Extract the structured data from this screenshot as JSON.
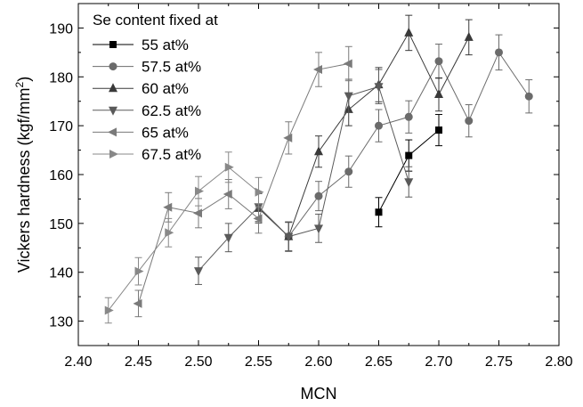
{
  "chart_data": {
    "type": "line",
    "xlabel": "MCN",
    "ylabel": "Vickers hardness (kgf/mm",
    "ylabel_sup": "2",
    "ylabel_tail": ")",
    "xlim": [
      2.4,
      2.8
    ],
    "ylim": [
      125,
      195
    ],
    "xticks": [
      "2.40",
      "2.45",
      "2.50",
      "2.55",
      "2.60",
      "2.65",
      "2.70",
      "2.75",
      "2.80"
    ],
    "yticks": [
      "130",
      "140",
      "150",
      "160",
      "170",
      "180",
      "190"
    ],
    "legend_title": "Se content fixed at",
    "legend_position": "top-left",
    "grid": false,
    "series": [
      {
        "name": "55 at%",
        "marker": "square",
        "color": "#000000",
        "points": [
          {
            "x": 2.65,
            "y": 152.3,
            "err": 3.0
          },
          {
            "x": 2.675,
            "y": 163.9,
            "err": 3.2
          },
          {
            "x": 2.7,
            "y": 169.1,
            "err": 3.2
          }
        ]
      },
      {
        "name": "57.5 at%",
        "marker": "circle",
        "color": "#6b6b6b",
        "points": [
          {
            "x": 2.575,
            "y": 147.3,
            "err": 3.0
          },
          {
            "x": 2.6,
            "y": 155.6,
            "err": 3.0
          },
          {
            "x": 2.625,
            "y": 160.6,
            "err": 3.2
          },
          {
            "x": 2.65,
            "y": 170.0,
            "err": 3.3
          },
          {
            "x": 2.675,
            "y": 171.8,
            "err": 3.3
          },
          {
            "x": 2.7,
            "y": 183.2,
            "err": 3.5
          },
          {
            "x": 2.725,
            "y": 171.0,
            "err": 3.3
          },
          {
            "x": 2.75,
            "y": 185.0,
            "err": 3.6
          },
          {
            "x": 2.775,
            "y": 176.0,
            "err": 3.4
          }
        ]
      },
      {
        "name": "60 at%",
        "marker": "triangle-up",
        "color": "#3a3a3a",
        "points": [
          {
            "x": 2.55,
            "y": 153.1,
            "err": 3.0
          },
          {
            "x": 2.575,
            "y": 147.3,
            "err": 3.0
          },
          {
            "x": 2.6,
            "y": 164.7,
            "err": 3.2
          },
          {
            "x": 2.625,
            "y": 173.3,
            "err": 3.3
          },
          {
            "x": 2.65,
            "y": 178.4,
            "err": 3.5
          },
          {
            "x": 2.675,
            "y": 189.0,
            "err": 3.6
          },
          {
            "x": 2.7,
            "y": 176.4,
            "err": 3.4
          },
          {
            "x": 2.725,
            "y": 188.1,
            "err": 3.6
          }
        ]
      },
      {
        "name": "62.5 at%",
        "marker": "triangle-down",
        "color": "#5a5a5a",
        "points": [
          {
            "x": 2.5,
            "y": 140.3,
            "err": 2.8
          },
          {
            "x": 2.525,
            "y": 147.1,
            "err": 2.9
          },
          {
            "x": 2.55,
            "y": 153.4,
            "err": 3.0
          },
          {
            "x": 2.575,
            "y": 147.3,
            "err": 2.9
          },
          {
            "x": 2.6,
            "y": 149.0,
            "err": 2.9
          },
          {
            "x": 2.625,
            "y": 176.1,
            "err": 3.4
          },
          {
            "x": 2.65,
            "y": 178.0,
            "err": 3.5
          },
          {
            "x": 2.675,
            "y": 158.5,
            "err": 3.1
          }
        ]
      },
      {
        "name": "65 at%",
        "marker": "triangle-left",
        "color": "#7a7a7a",
        "points": [
          {
            "x": 2.45,
            "y": 133.6,
            "err": 2.7
          },
          {
            "x": 2.475,
            "y": 153.3,
            "err": 3.0
          },
          {
            "x": 2.5,
            "y": 152.1,
            "err": 3.0
          },
          {
            "x": 2.525,
            "y": 156.0,
            "err": 3.0
          },
          {
            "x": 2.55,
            "y": 151.0,
            "err": 3.0
          },
          {
            "x": 2.575,
            "y": 167.5,
            "err": 3.3
          },
          {
            "x": 2.6,
            "y": 181.5,
            "err": 3.5
          },
          {
            "x": 2.625,
            "y": 182.7,
            "err": 3.5
          }
        ]
      },
      {
        "name": "67.5 at%",
        "marker": "triangle-right",
        "color": "#888888",
        "points": [
          {
            "x": 2.425,
            "y": 132.2,
            "err": 2.6
          },
          {
            "x": 2.45,
            "y": 140.2,
            "err": 2.8
          },
          {
            "x": 2.475,
            "y": 148.1,
            "err": 2.9
          },
          {
            "x": 2.5,
            "y": 156.6,
            "err": 3.0
          },
          {
            "x": 2.525,
            "y": 161.5,
            "err": 3.1
          },
          {
            "x": 2.55,
            "y": 156.4,
            "err": 3.0
          }
        ]
      }
    ]
  }
}
